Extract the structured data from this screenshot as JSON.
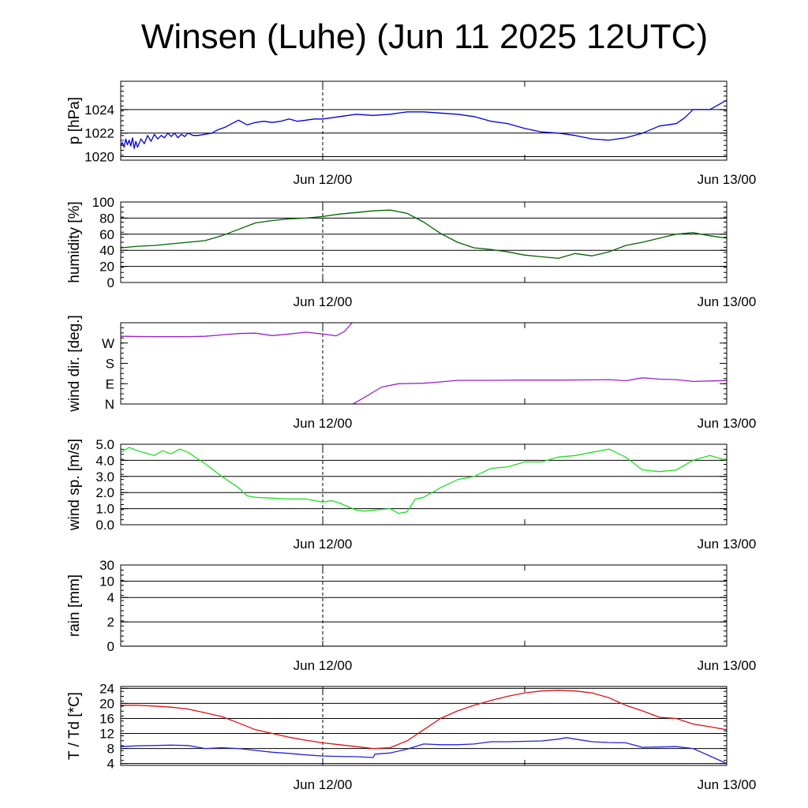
{
  "title": "Winsen (Luhe) (Jun 11 2025 12UTC)",
  "chart_data": [
    {
      "type": "line",
      "ylabel": "p [hPa]",
      "ylim": [
        1019.7,
        1026.4
      ],
      "yticks": [
        1020,
        1022,
        1024
      ],
      "ytick_labels": [
        "1020",
        "1022",
        "1024"
      ],
      "xlim": [
        0,
        36
      ],
      "xtick_labels": [
        "Jun 12/00",
        "Jun 13/00"
      ],
      "xticks": [
        12,
        36
      ],
      "grid": "horizontal",
      "series": [
        {
          "color": "#0000dd",
          "x": [
            0,
            0.1,
            0.2,
            0.3,
            0.4,
            0.5,
            0.6,
            0.7,
            0.8,
            0.9,
            1.0,
            1.2,
            1.4,
            1.6,
            1.8,
            2.0,
            2.2,
            2.4,
            2.6,
            2.8,
            3.0,
            3.2,
            3.4,
            3.6,
            3.8,
            4.0,
            4.3,
            4.6,
            5.0,
            5.4,
            5.8,
            6.2,
            6.6,
            7.0,
            7.5,
            8.0,
            8.5,
            9.0,
            9.5,
            10.0,
            10.5,
            11.0,
            11.5,
            12.0,
            13.0,
            14.0,
            15.0,
            16.0,
            17.0,
            18.0,
            19.0,
            20.0,
            21.0,
            22.0,
            23.0,
            24.0,
            25.0,
            26.0,
            27.0,
            28.0,
            29.0,
            30.0,
            31.0,
            32.0,
            33.0,
            33.5,
            34.0,
            35.0,
            35.5,
            36.0
          ],
          "y": [
            1020.9,
            1021.2,
            1020.8,
            1021.5,
            1021.0,
            1021.4,
            1020.9,
            1021.6,
            1020.7,
            1021.3,
            1020.8,
            1021.5,
            1021.1,
            1021.8,
            1021.3,
            1021.9,
            1021.5,
            1021.8,
            1021.6,
            1022.0,
            1021.7,
            1022.0,
            1021.6,
            1021.9,
            1021.7,
            1022.0,
            1021.8,
            1021.8,
            1021.9,
            1022.0,
            1022.3,
            1022.5,
            1022.8,
            1023.1,
            1022.7,
            1022.9,
            1023.0,
            1022.9,
            1023.0,
            1023.2,
            1023.0,
            1023.1,
            1023.2,
            1023.2,
            1023.4,
            1023.6,
            1023.5,
            1023.6,
            1023.8,
            1023.8,
            1023.7,
            1023.6,
            1023.4,
            1023.0,
            1022.8,
            1022.4,
            1022.1,
            1022.0,
            1021.8,
            1021.5,
            1021.4,
            1021.6,
            1022.0,
            1022.6,
            1022.8,
            1023.3,
            1024.0,
            1024.0,
            1024.4,
            1024.8
          ]
        }
      ]
    },
    {
      "type": "line",
      "ylabel": "humidity [%]",
      "ylim": [
        0,
        100
      ],
      "yticks": [
        0,
        20,
        40,
        60,
        80,
        100
      ],
      "ytick_labels": [
        "0",
        "20",
        "40",
        "60",
        "80",
        "100"
      ],
      "xlim": [
        0,
        36
      ],
      "xtick_labels": [
        "Jun 12/00",
        "Jun 13/00"
      ],
      "xticks": [
        12,
        36
      ],
      "grid": "horizontal",
      "series": [
        {
          "color": "#006400",
          "x": [
            0,
            1,
            2,
            3,
            4,
            5,
            6,
            7,
            8,
            9,
            10,
            11,
            12,
            13,
            14,
            15,
            16,
            17,
            18,
            19,
            20,
            21,
            22,
            23,
            24,
            25,
            26,
            27,
            28,
            29,
            30,
            31,
            32,
            33,
            34,
            35,
            36
          ],
          "y": [
            43,
            45,
            46,
            48,
            50,
            52,
            58,
            66,
            74,
            77,
            79,
            80,
            82,
            85,
            87,
            89,
            90,
            86,
            75,
            61,
            50,
            43,
            41,
            38,
            34,
            32,
            30,
            36,
            33,
            38,
            46,
            50,
            55,
            60,
            62,
            58,
            55
          ]
        }
      ]
    },
    {
      "type": "line",
      "ylabel": "wind dir. [deg.]",
      "ylim": [
        0,
        360
      ],
      "yticks": [
        0,
        90,
        180,
        270
      ],
      "ytick_labels": [
        "N",
        "E",
        "S",
        "W"
      ],
      "xlim": [
        0,
        36
      ],
      "xtick_labels": [
        "Jun 12/00",
        "Jun 13/00"
      ],
      "xticks": [
        12,
        36
      ],
      "grid": "none",
      "series": [
        {
          "color": "#9922cc",
          "x": [
            0,
            2,
            4,
            5,
            6,
            7,
            8,
            9,
            10,
            11,
            12,
            12.8,
            13.3,
            13.8
          ],
          "y": [
            300,
            298,
            298,
            300,
            306,
            312,
            314,
            303,
            310,
            318,
            310,
            302,
            322,
            365
          ]
        },
        {
          "color": "#9922cc",
          "x": [
            13.8,
            14.5,
            15.5,
            16.5,
            18,
            19,
            20,
            22,
            24,
            26,
            28,
            29,
            30,
            31,
            32,
            33,
            34,
            35,
            36
          ],
          "y": [
            0,
            30,
            75,
            90,
            92,
            98,
            105,
            105,
            106,
            106,
            107,
            108,
            103,
            116,
            110,
            108,
            100,
            102,
            104
          ]
        }
      ]
    },
    {
      "type": "line",
      "ylabel": "wind sp. [m/s]",
      "ylim": [
        0,
        5
      ],
      "yticks": [
        0,
        1,
        2,
        3,
        4,
        5
      ],
      "ytick_labels": [
        "0.0",
        "1.0",
        "2.0",
        "3.0",
        "4.0",
        "5.0"
      ],
      "xlim": [
        0,
        36
      ],
      "xtick_labels": [
        "Jun 12/00",
        "Jun 13/00"
      ],
      "xticks": [
        12,
        36
      ],
      "grid": "horizontal",
      "series": [
        {
          "color": "#22dd22",
          "x": [
            0,
            0.5,
            1,
            2,
            2.5,
            3,
            3.5,
            4,
            5,
            6,
            7,
            7.5,
            8,
            9,
            10,
            11,
            12,
            12.5,
            13,
            14,
            14.5,
            15,
            16,
            16.5,
            17,
            17.5,
            18,
            19,
            20,
            21,
            22,
            23,
            24,
            25,
            26,
            27,
            28,
            29,
            30,
            31,
            32,
            33,
            34,
            35,
            36
          ],
          "y": [
            4.5,
            4.8,
            4.6,
            4.3,
            4.6,
            4.4,
            4.7,
            4.5,
            3.8,
            3.0,
            2.3,
            1.8,
            1.7,
            1.65,
            1.6,
            1.6,
            1.4,
            1.5,
            1.35,
            0.9,
            0.85,
            0.9,
            1.0,
            0.7,
            0.8,
            1.6,
            1.7,
            2.3,
            2.8,
            3.0,
            3.5,
            3.6,
            3.9,
            3.9,
            4.2,
            4.3,
            4.5,
            4.7,
            4.2,
            3.4,
            3.3,
            3.4,
            4.0,
            4.3,
            4.0
          ]
        }
      ]
    },
    {
      "type": "line",
      "ylabel": "rain [mm]",
      "ylim": [
        0,
        30
      ],
      "yticks": [
        0,
        2,
        4,
        10,
        30
      ],
      "ytick_labels": [
        "0",
        "2",
        "4",
        "10",
        "30"
      ],
      "xlim": [
        0,
        36
      ],
      "xtick_labels": [
        "Jun 12/00",
        "Jun 13/00"
      ],
      "xticks": [
        12,
        36
      ],
      "grid": "horizontal",
      "series": [
        {
          "color": "#0000aa",
          "x": [
            0,
            36
          ],
          "y": [
            0,
            0
          ]
        }
      ]
    },
    {
      "type": "line",
      "ylabel": "T / Td [*C]",
      "ylim": [
        3.5,
        24.5
      ],
      "yticks": [
        4,
        8,
        12,
        16,
        20,
        24
      ],
      "ytick_labels": [
        "4",
        "8",
        "12",
        "16",
        "20",
        "24"
      ],
      "xlim": [
        0,
        36
      ],
      "xtick_labels": [
        "Jun 12/00",
        "Jun 13/00"
      ],
      "xticks": [
        12,
        36
      ],
      "grid": "horizontal",
      "series": [
        {
          "color": "#dd1111",
          "x": [
            0,
            1,
            2,
            3,
            4,
            5,
            6,
            7,
            8,
            9,
            10,
            11,
            12,
            13,
            14,
            15,
            16,
            17,
            18,
            19,
            20,
            21,
            22,
            23,
            24,
            25,
            26,
            27,
            28,
            29,
            30,
            31,
            32,
            33,
            34,
            35,
            36
          ],
          "y": [
            19.5,
            19.5,
            19.3,
            19.0,
            18.5,
            17.5,
            16.5,
            14.8,
            13.0,
            12.0,
            11.0,
            10.2,
            9.5,
            9.0,
            8.5,
            8.0,
            8.2,
            10.0,
            13.0,
            16.0,
            18.0,
            19.5,
            20.8,
            21.9,
            22.8,
            23.3,
            23.5,
            23.3,
            22.8,
            21.5,
            19.5,
            18.0,
            16.3,
            16.0,
            14.5,
            13.8,
            13.0
          ]
        },
        {
          "color": "#2222dd",
          "x": [
            0,
            1,
            2,
            3,
            4,
            5,
            6,
            7,
            8,
            9,
            10,
            11,
            12,
            13,
            14,
            15,
            15.1,
            16,
            17,
            18,
            19,
            20,
            21,
            22,
            23,
            24,
            25,
            26,
            26.5,
            27,
            28,
            29,
            30,
            31,
            32,
            33,
            34,
            35,
            36
          ],
          "y": [
            8.5,
            8.7,
            8.8,
            8.9,
            8.8,
            8.0,
            8.2,
            8.0,
            7.5,
            7.0,
            6.7,
            6.3,
            6.0,
            5.9,
            5.8,
            5.6,
            6.5,
            6.8,
            7.8,
            9.2,
            9.0,
            9.0,
            9.2,
            9.8,
            9.8,
            9.9,
            10.0,
            10.5,
            10.9,
            10.5,
            9.8,
            9.6,
            9.5,
            8.3,
            8.4,
            8.5,
            8.0,
            6.0,
            4.0
          ]
        }
      ]
    }
  ]
}
